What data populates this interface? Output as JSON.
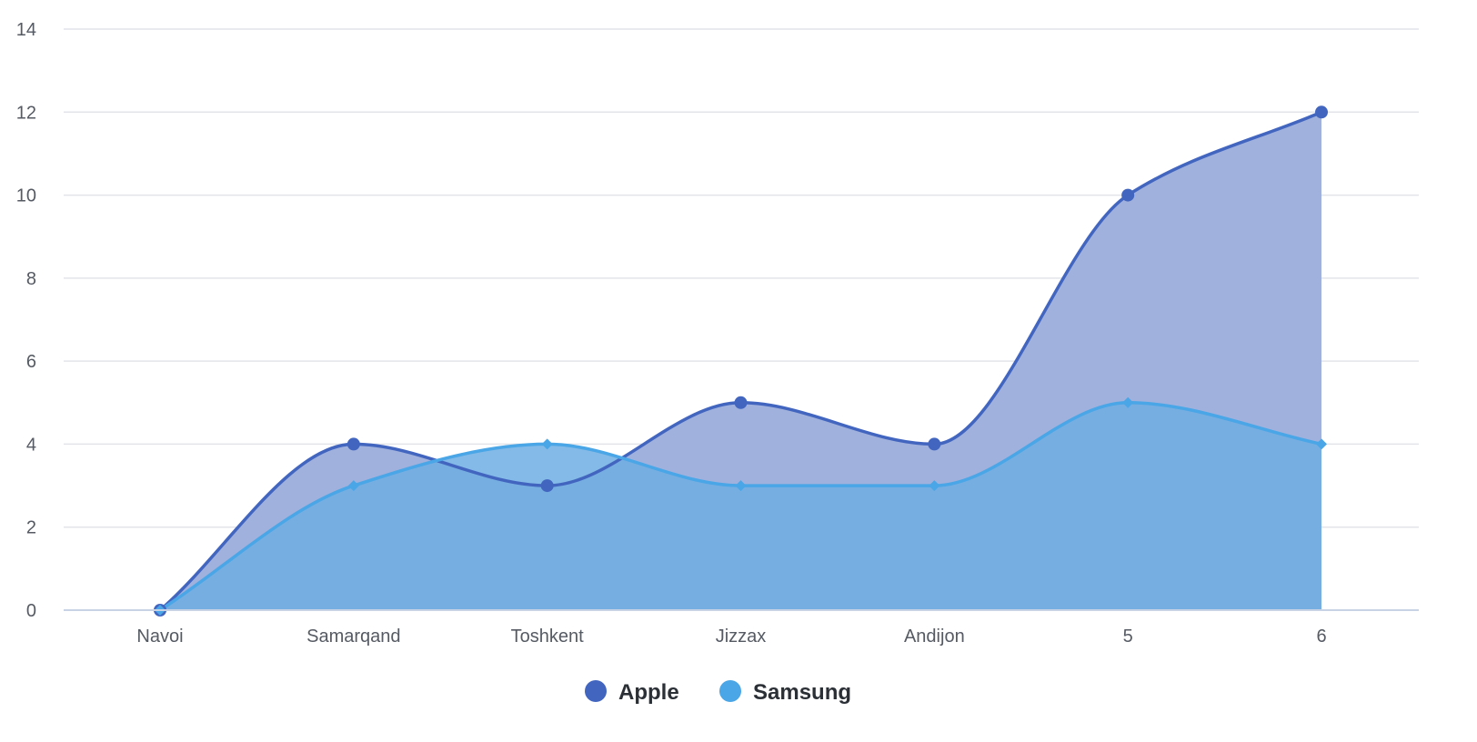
{
  "chart_data": {
    "type": "area",
    "curve": "smooth",
    "categories": [
      "Navoi",
      "Samarqand",
      "Toshkent",
      "Jizzax",
      "Andijon",
      "5",
      "6"
    ],
    "ylim": [
      0,
      14
    ],
    "yticks": [
      0,
      2,
      4,
      6,
      8,
      10,
      12,
      14
    ],
    "grid": true,
    "legend_position": "bottom-center",
    "series": [
      {
        "name": "Apple",
        "values": [
          0,
          4,
          3,
          5,
          4,
          10,
          12
        ],
        "color": "#4266c0",
        "fill": "#a0b1dd",
        "marker": "circle"
      },
      {
        "name": "Samsung",
        "values": [
          0,
          3,
          4,
          3,
          3,
          5,
          4
        ],
        "color": "#4aa6e6",
        "fill": "#6eaee3",
        "marker": "diamond"
      }
    ]
  }
}
